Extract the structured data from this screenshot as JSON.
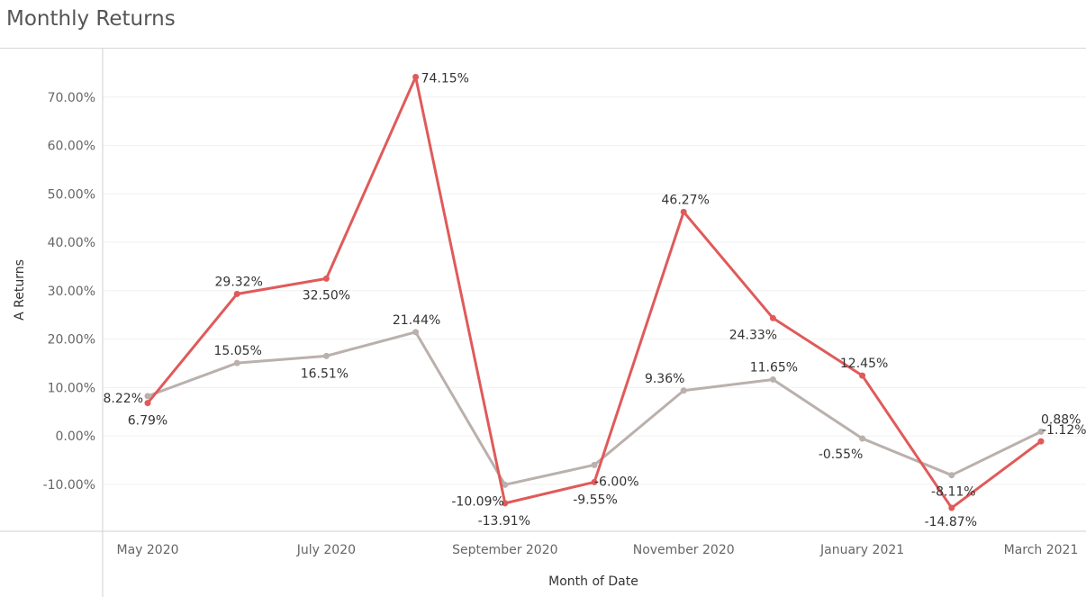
{
  "title": "Monthly Returns",
  "chart_data": {
    "type": "line",
    "title": "Monthly Returns",
    "xlabel": "Month of Date",
    "ylabel": "A Returns",
    "x": [
      "May 2020",
      "Jun 2020",
      "Jul 2020",
      "Aug 2020",
      "Sep 2020",
      "Oct 2020",
      "Nov 2020",
      "Dec 2020",
      "Jan 2021",
      "Feb 2021",
      "Mar 2021"
    ],
    "x_tick_labels": [
      "May 2020",
      "July 2020",
      "September 2020",
      "November 2020",
      "January 2021",
      "March 2021"
    ],
    "x_tick_indices": [
      0,
      2,
      4,
      6,
      8,
      10
    ],
    "y_ticks": [
      -10,
      0,
      10,
      20,
      30,
      40,
      50,
      60,
      70
    ],
    "y_tick_labels": [
      "-10.00%",
      "0.00%",
      "10.00%",
      "20.00%",
      "30.00%",
      "40.00%",
      "50.00%",
      "60.00%",
      "70.00%"
    ],
    "ylim": [
      -19.7,
      80
    ],
    "grid": true,
    "series": [
      {
        "color": "#e05a5a",
        "values": [
          6.79,
          29.32,
          32.5,
          74.15,
          -13.91,
          -9.55,
          46.27,
          24.33,
          12.45,
          -14.87,
          -1.12
        ],
        "labels": [
          "6.79%",
          "29.32%",
          "32.50%",
          "74.15%",
          "-13.91%",
          "-9.55%",
          "46.27%",
          "24.33%",
          "12.45%",
          "-14.87%",
          "-1.12%"
        ]
      },
      {
        "color": "#bab0ac",
        "values": [
          8.22,
          15.05,
          16.51,
          21.44,
          -10.09,
          -6.0,
          9.36,
          11.65,
          -0.55,
          -8.11,
          0.88
        ],
        "labels": [
          "8.22%",
          "15.05%",
          "16.51%",
          "21.44%",
          "-10.09%",
          "-6.00%",
          "9.36%",
          "11.65%",
          "-0.55%",
          "-8.11%",
          "0.88%"
        ]
      }
    ]
  }
}
